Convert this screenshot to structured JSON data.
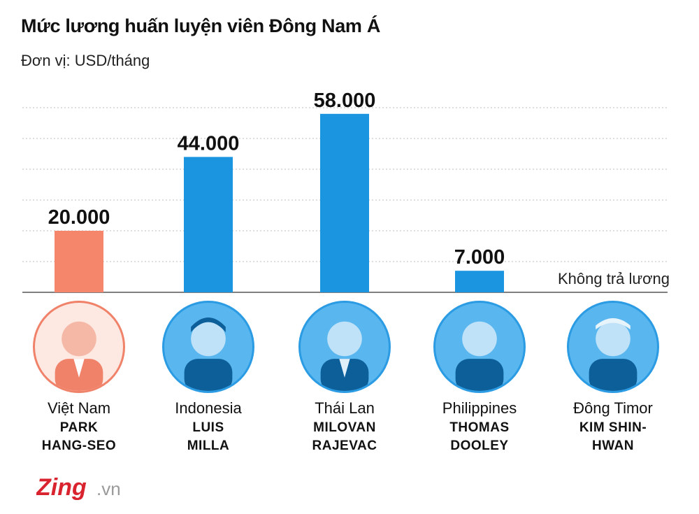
{
  "title": "Mức lương huấn luyện viên Đông Nam Á",
  "subtitle": "Đơn vị: USD/tháng",
  "chart_data": {
    "type": "bar",
    "title": "Mức lương huấn luyện viên Đông Nam Á",
    "unit": "Đơn vị: USD/tháng",
    "categories": [
      "Việt Nam",
      "Indonesia",
      "Thái Lan",
      "Philippines",
      "Đông Timor"
    ],
    "values": [
      20000,
      44000,
      58000,
      7000,
      0
    ],
    "value_labels": [
      "20.000",
      "44.000",
      "58.000",
      "7.000",
      "Không trả lương"
    ],
    "ylim": [
      0,
      60000
    ],
    "grid": true,
    "colors": [
      "#f5866b",
      "#1b95e0",
      "#1b95e0",
      "#1b95e0",
      "#1b95e0"
    ]
  },
  "coaches": [
    {
      "country": "Việt Nam",
      "name_line1": "PARK",
      "name_line2": "HANG-SEO",
      "avatar_icon": "coach-portrait"
    },
    {
      "country": "Indonesia",
      "name_line1": "LUIS",
      "name_line2": "MILLA",
      "avatar_icon": "coach-portrait"
    },
    {
      "country": "Thái Lan",
      "name_line1": "MILOVAN",
      "name_line2": "RAJEVAC",
      "avatar_icon": "coach-portrait"
    },
    {
      "country": "Philippines",
      "name_line1": "THOMAS",
      "name_line2": "DOOLEY",
      "avatar_icon": "coach-portrait"
    },
    {
      "country": "Đông Timor",
      "name_line1": "KIM SHIN-",
      "name_line2": "HWAN",
      "avatar_icon": "coach-portrait"
    }
  ],
  "logo": {
    "brand": "Zing",
    "suffix": ".vn",
    "brand_color": "#d9232e"
  }
}
